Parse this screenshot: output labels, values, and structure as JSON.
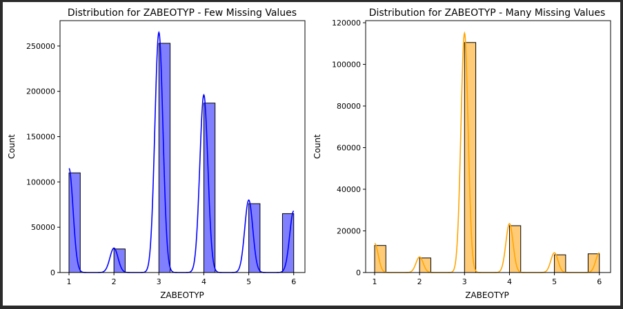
{
  "chart_data": [
    {
      "type": "bar",
      "title": "Distribution for ZABEOTYP - Few Missing Values",
      "xlabel": "ZABEOTYP",
      "ylabel": "Count",
      "bins": [
        [
          1.0,
          1.25
        ],
        [
          2.0,
          2.25
        ],
        [
          3.0,
          3.25
        ],
        [
          4.0,
          4.25
        ],
        [
          5.0,
          5.25
        ],
        [
          5.75,
          6.0
        ]
      ],
      "values": [
        110000,
        26000,
        253000,
        187000,
        76000,
        65000
      ],
      "kde": {
        "peaks": [
          [
            1,
            115000
          ],
          [
            2,
            27000
          ],
          [
            3,
            265000
          ],
          [
            4,
            196000
          ],
          [
            5,
            80000
          ],
          [
            6,
            68000
          ]
        ],
        "width": 0.09
      },
      "xlim": [
        0.8,
        6.25
      ],
      "ylim": [
        0,
        278000
      ],
      "xticks": [
        "1",
        "2",
        "3",
        "4",
        "5",
        "6"
      ],
      "yticks": [
        "0",
        "50000",
        "100000",
        "150000",
        "200000",
        "250000"
      ],
      "bar_color": "#8080ff",
      "line_color": "#0000ff",
      "grid": false
    },
    {
      "type": "bar",
      "title": "Distribution for ZABEOTYP - Many Missing Values",
      "xlabel": "ZABEOTYP",
      "ylabel": "Count",
      "bins": [
        [
          1.0,
          1.25
        ],
        [
          2.0,
          2.25
        ],
        [
          3.0,
          3.25
        ],
        [
          4.0,
          4.25
        ],
        [
          5.0,
          5.25
        ],
        [
          5.75,
          6.0
        ]
      ],
      "values": [
        13000,
        7000,
        110500,
        22500,
        8500,
        9000
      ],
      "kde": {
        "peaks": [
          [
            1,
            14000
          ],
          [
            2,
            7500
          ],
          [
            3,
            115000
          ],
          [
            4,
            23500
          ],
          [
            5,
            9500
          ],
          [
            6,
            9500
          ]
        ],
        "width": 0.08
      },
      "xlim": [
        0.8,
        6.25
      ],
      "ylim": [
        0,
        121000
      ],
      "xticks": [
        "1",
        "2",
        "3",
        "4",
        "5",
        "6"
      ],
      "yticks": [
        "0",
        "20000",
        "40000",
        "60000",
        "80000",
        "100000",
        "120000"
      ],
      "bar_color": "#ffcb77",
      "line_color": "#ffa500",
      "grid": false
    }
  ]
}
